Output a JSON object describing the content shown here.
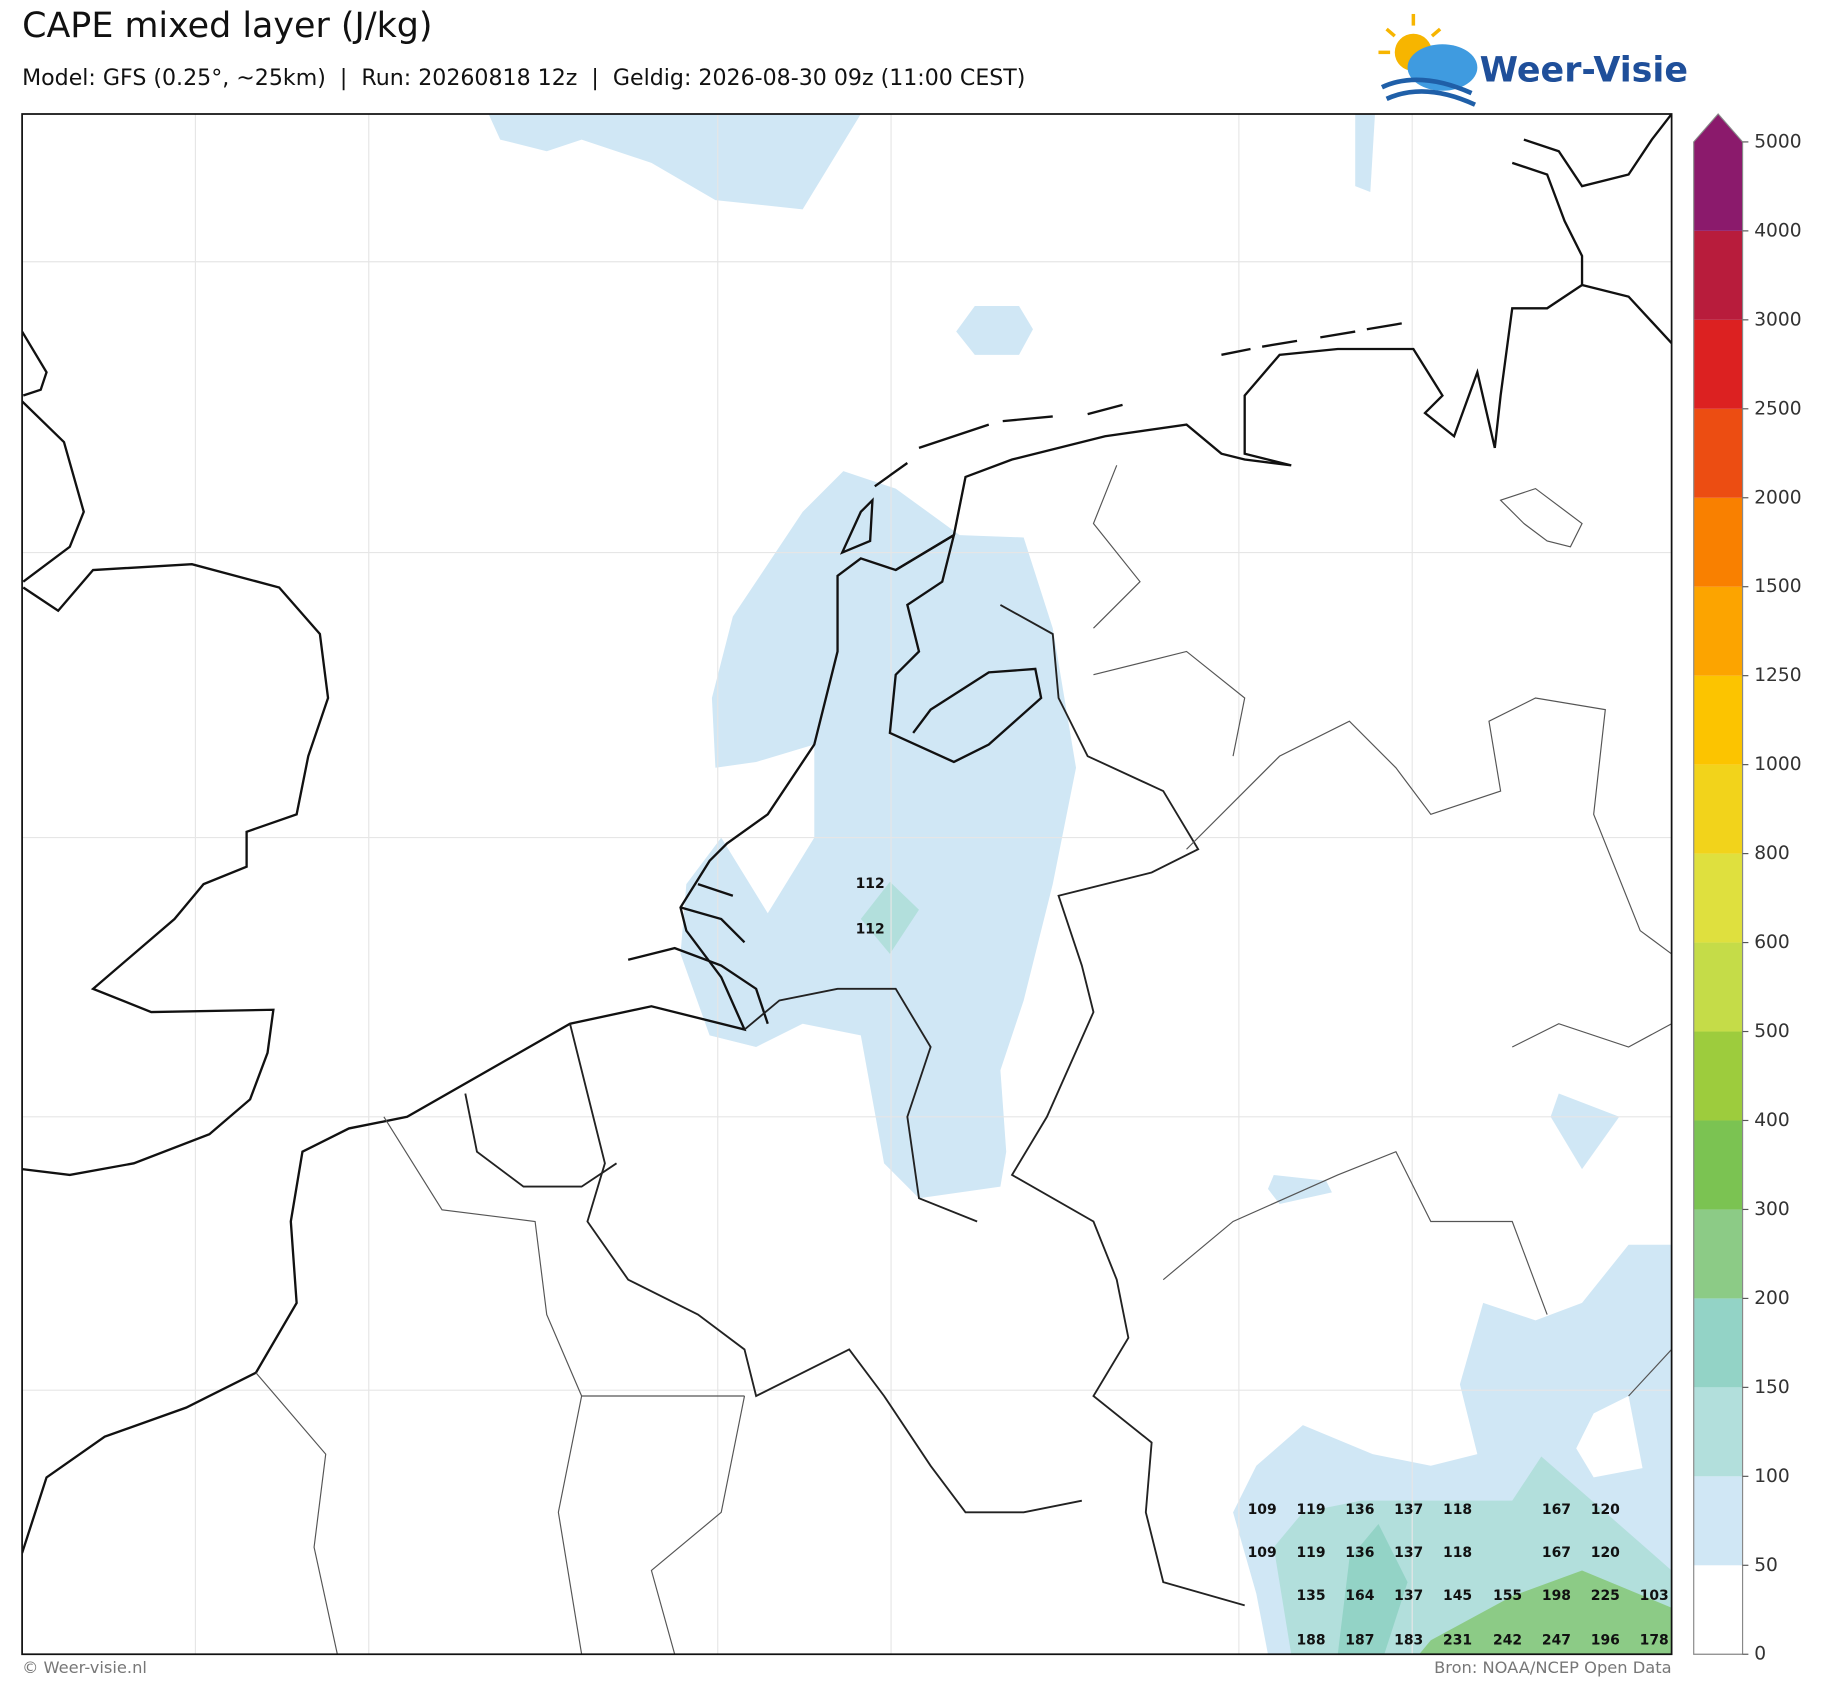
{
  "header": {
    "title": "CAPE mixed layer (J/kg)",
    "subtitle": "Model: GFS (0.25°, ~25km)  |  Run: 20260818 12z  |  Geldig: 2026-08-30 09z (11:00 CEST)",
    "logo": "Weer-Visie"
  },
  "map_labels": [
    112,
    112,
    109,
    119,
    136,
    137,
    118,
    167,
    120,
    109,
    119,
    136,
    137,
    118,
    167,
    120,
    135,
    164,
    137,
    145,
    155,
    198,
    225,
    103,
    188,
    187,
    183,
    231,
    242,
    247,
    196,
    178
  ],
  "colorbar": {
    "ticks": [
      0,
      50,
      100,
      150,
      200,
      300,
      400,
      500,
      600,
      800,
      1000,
      1250,
      1500,
      2000,
      2500,
      3000,
      4000,
      5000
    ],
    "colors": [
      "#ffffff",
      "#d0e7f5",
      "#b2dfdc",
      "#93d3c6",
      "#8ccb86",
      "#7bc352",
      "#9dcc3d",
      "#c5dc48",
      "#dfe03e",
      "#f2d31b",
      "#fcc400",
      "#fca400",
      "#f98000",
      "#ec4d12",
      "#dc2121",
      "#b81c3c",
      "#8b1a6c"
    ]
  },
  "footer": {
    "left": "© Weer-visie.nl",
    "right": "Bron: NOAA/NCEP Open Data"
  }
}
